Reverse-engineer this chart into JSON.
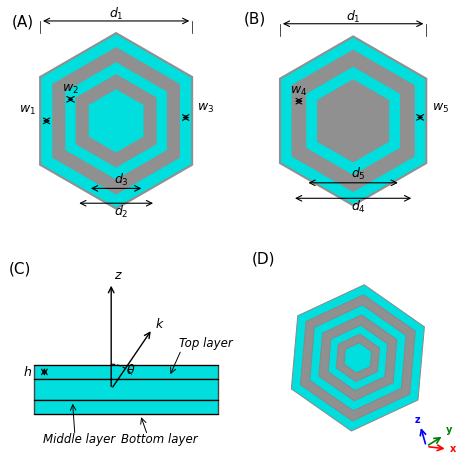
{
  "cyan_color": "#00DEDE",
  "gray_color": "#909090",
  "bg_color": "#ffffff",
  "panel_labels": [
    "(A)",
    "(B)",
    "(C)",
    "(D)"
  ],
  "label_fontsize": 11,
  "ann_fontsize": 9,
  "rot_deg": 30,
  "ra": [
    1.3,
    1.08,
    0.88,
    0.68,
    0.48
  ],
  "rb": [
    1.2,
    1.0,
    0.78,
    0.58
  ]
}
